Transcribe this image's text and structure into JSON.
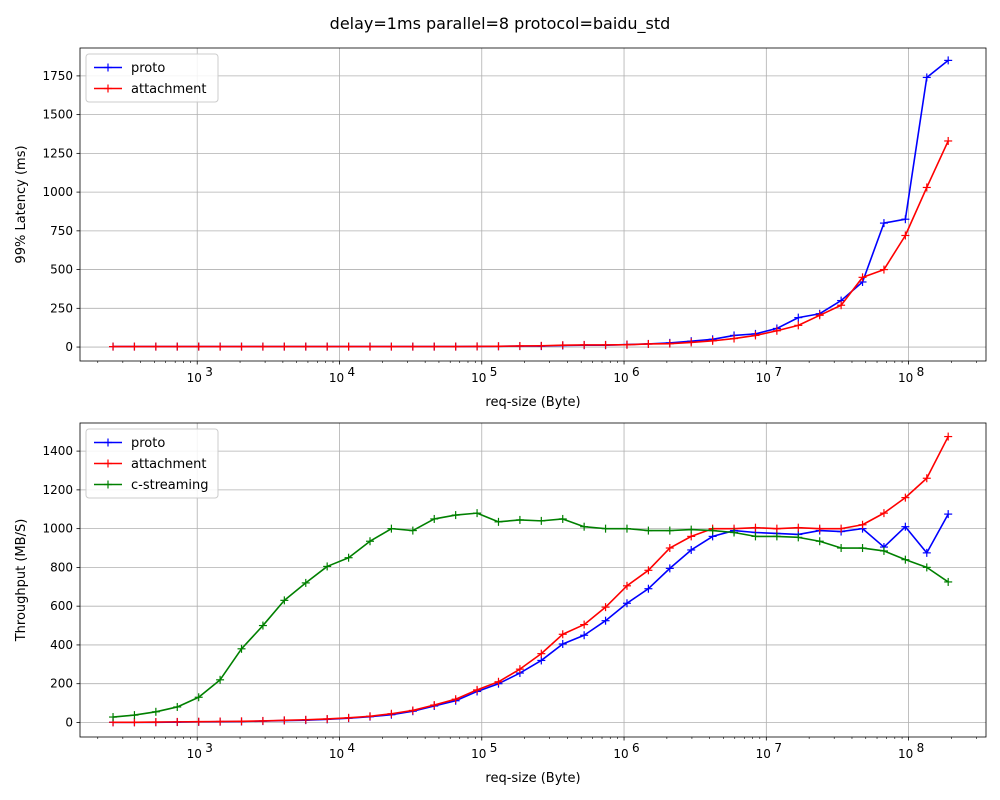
{
  "figure": {
    "title": "delay=1ms parallel=8 protocol=baidu_std"
  },
  "chart_data": [
    {
      "type": "line",
      "title": "delay=1ms parallel=8 protocol=baidu_std",
      "xlabel": "req-size (Byte)",
      "ylabel": "99% Latency (ms)",
      "xscale": "log",
      "xlim": [
        150,
        350000000
      ],
      "ylim": [
        -90,
        1930
      ],
      "yticks": [
        0,
        250,
        500,
        750,
        1000,
        1250,
        1500,
        1750
      ],
      "xticks": [
        1000,
        10000,
        100000,
        1000000,
        10000000,
        100000000
      ],
      "xticklabels": [
        {
          "base": "10",
          "exp": "3"
        },
        {
          "base": "10",
          "exp": "4"
        },
        {
          "base": "10",
          "exp": "5"
        },
        {
          "base": "10",
          "exp": "6"
        },
        {
          "base": "10",
          "exp": "7"
        },
        {
          "base": "10",
          "exp": "8"
        }
      ],
      "grid": true,
      "legend_position": "upper-left",
      "x": [
        256,
        362,
        512,
        724,
        1024,
        1448,
        2048,
        2896,
        4096,
        5793,
        8192,
        11585,
        16384,
        23170,
        32768,
        46341,
        65536,
        92682,
        131072,
        185364,
        262144,
        370728,
        524288,
        741455,
        1048576,
        1482910,
        2097152,
        2965821,
        4194304,
        5931642,
        8388608,
        11863283,
        16777216,
        23726566,
        33554432,
        47453133,
        67108864,
        94906265,
        134217728,
        189812531
      ],
      "series": [
        {
          "name": "proto",
          "color": "#0000ff",
          "values": [
            3,
            3,
            3,
            3,
            3,
            3,
            3,
            3,
            3,
            3,
            3,
            3,
            3,
            3,
            3,
            3,
            3,
            4,
            5,
            6,
            6,
            10,
            12,
            12,
            16,
            20,
            27,
            38,
            50,
            75,
            85,
            120,
            190,
            215,
            300,
            420,
            800,
            825,
            1740,
            1850
          ]
        },
        {
          "name": "attachment",
          "color": "#ff0000",
          "values": [
            3,
            3,
            3,
            3,
            3,
            3,
            3,
            3,
            3,
            3,
            3,
            3,
            3,
            3,
            3,
            3,
            3,
            4,
            5,
            7,
            8,
            12,
            14,
            14,
            15,
            20,
            22,
            30,
            40,
            55,
            75,
            105,
            140,
            205,
            270,
            450,
            500,
            720,
            1030,
            1330
          ]
        }
      ]
    },
    {
      "type": "line",
      "xlabel": "req-size (Byte)",
      "ylabel": "Throughput (MB/S)",
      "xscale": "log",
      "xlim": [
        150,
        350000000
      ],
      "ylim": [
        -75,
        1545
      ],
      "yticks": [
        0,
        200,
        400,
        600,
        800,
        1000,
        1200,
        1400
      ],
      "xticks": [
        1000,
        10000,
        100000,
        1000000,
        10000000,
        100000000
      ],
      "xticklabels": [
        {
          "base": "10",
          "exp": "3"
        },
        {
          "base": "10",
          "exp": "4"
        },
        {
          "base": "10",
          "exp": "5"
        },
        {
          "base": "10",
          "exp": "6"
        },
        {
          "base": "10",
          "exp": "7"
        },
        {
          "base": "10",
          "exp": "8"
        }
      ],
      "grid": true,
      "legend_position": "upper-left",
      "x": [
        256,
        362,
        512,
        724,
        1024,
        1448,
        2048,
        2896,
        4096,
        5793,
        8192,
        11585,
        16384,
        23170,
        32768,
        46341,
        65536,
        92682,
        131072,
        185364,
        262144,
        370728,
        524288,
        741455,
        1048576,
        1482910,
        2097152,
        2965821,
        4194304,
        5931642,
        8388608,
        11863283,
        16777216,
        23726566,
        33554432,
        47453133,
        67108864,
        94906265,
        134217728,
        189812531
      ],
      "series": [
        {
          "name": "proto",
          "color": "#0000ff",
          "values": [
            1,
            1,
            1,
            2,
            3,
            4,
            5,
            7,
            10,
            12,
            16,
            22,
            30,
            40,
            58,
            85,
            112,
            160,
            200,
            255,
            320,
            405,
            450,
            525,
            615,
            690,
            795,
            890,
            960,
            990,
            980,
            975,
            970,
            990,
            985,
            1000,
            905,
            1010,
            875,
            1075
          ]
        },
        {
          "name": "attachment",
          "color": "#ff0000",
          "values": [
            1,
            1,
            2,
            3,
            4,
            5,
            6,
            8,
            11,
            14,
            18,
            24,
            32,
            45,
            62,
            90,
            120,
            168,
            210,
            275,
            355,
            455,
            505,
            595,
            705,
            785,
            900,
            960,
            1000,
            1000,
            1005,
            1000,
            1005,
            1000,
            1000,
            1020,
            1080,
            1160,
            1260,
            1475
          ]
        },
        {
          "name": "c-streaming",
          "color": "#008000",
          "values": [
            28,
            38,
            55,
            80,
            130,
            220,
            380,
            500,
            630,
            720,
            805,
            850,
            935,
            1000,
            990,
            1050,
            1070,
            1080,
            1035,
            1045,
            1040,
            1050,
            1010,
            1000,
            1000,
            990,
            990,
            995,
            990,
            980,
            960,
            960,
            955,
            935,
            900,
            900,
            885,
            840,
            800,
            725
          ]
        }
      ]
    }
  ]
}
